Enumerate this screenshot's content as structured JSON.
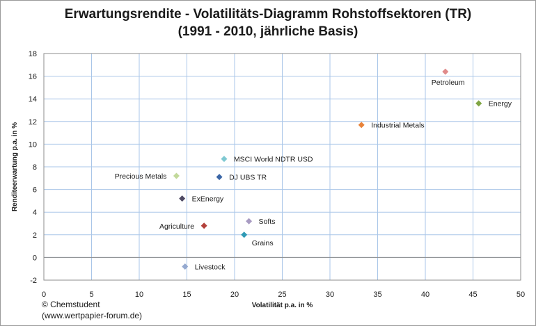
{
  "title_line1": "Erwartungsrendite - Volatilitäts-Diagramm Rohstoffsektoren (TR)",
  "title_line2": "(1991 - 2010, jährliche Basis)",
  "credit_line1": "© Chemstudent",
  "credit_line2": "(www.wertpapier-forum.de)",
  "chart_data": {
    "type": "scatter",
    "title": "Erwartungsrendite - Volatilitäts-Diagramm Rohstoffsektoren (TR) (1991 - 2010, jährliche Basis)",
    "xlabel": "Volatilität p.a. in %",
    "ylabel": "Renditeerwartung p.a. in %",
    "xlim": [
      0,
      50
    ],
    "ylim": [
      -2,
      18
    ],
    "xticks": [
      0,
      5,
      10,
      15,
      20,
      25,
      30,
      35,
      40,
      45,
      50
    ],
    "yticks": [
      -2,
      0,
      2,
      4,
      6,
      8,
      10,
      12,
      14,
      16,
      18
    ],
    "grid": true,
    "legend": "none",
    "points": [
      {
        "label": "Petroleum",
        "x": 42.1,
        "y": 16.4,
        "color": "#e08a8a",
        "label_pos": "below"
      },
      {
        "label": "Energy",
        "x": 45.6,
        "y": 13.6,
        "color": "#7fa544",
        "label_pos": "right"
      },
      {
        "label": "Industrial Metals",
        "x": 33.3,
        "y": 11.7,
        "color": "#e8833a",
        "label_pos": "right"
      },
      {
        "label": "MSCI World NDTR USD",
        "x": 18.9,
        "y": 8.7,
        "color": "#7fc9d2",
        "label_pos": "right"
      },
      {
        "label": "Precious Metals",
        "x": 13.9,
        "y": 7.2,
        "color": "#c2d99a",
        "label_pos": "left"
      },
      {
        "label": "DJ UBS TR",
        "x": 18.4,
        "y": 7.1,
        "color": "#3a66a6",
        "label_pos": "right"
      },
      {
        "label": "ExEnergy",
        "x": 14.5,
        "y": 5.2,
        "color": "#4f4a63",
        "label_pos": "right"
      },
      {
        "label": "Softs",
        "x": 21.5,
        "y": 3.2,
        "color": "#a89bc2",
        "label_pos": "right"
      },
      {
        "label": "Agriculture",
        "x": 16.8,
        "y": 2.8,
        "color": "#b3413b",
        "label_pos": "left"
      },
      {
        "label": "Grains",
        "x": 21.0,
        "y": 2.0,
        "color": "#2f9ab5",
        "label_pos": "below-right"
      },
      {
        "label": "Livestock",
        "x": 14.8,
        "y": -0.8,
        "color": "#95a9d0",
        "label_pos": "right"
      }
    ]
  }
}
